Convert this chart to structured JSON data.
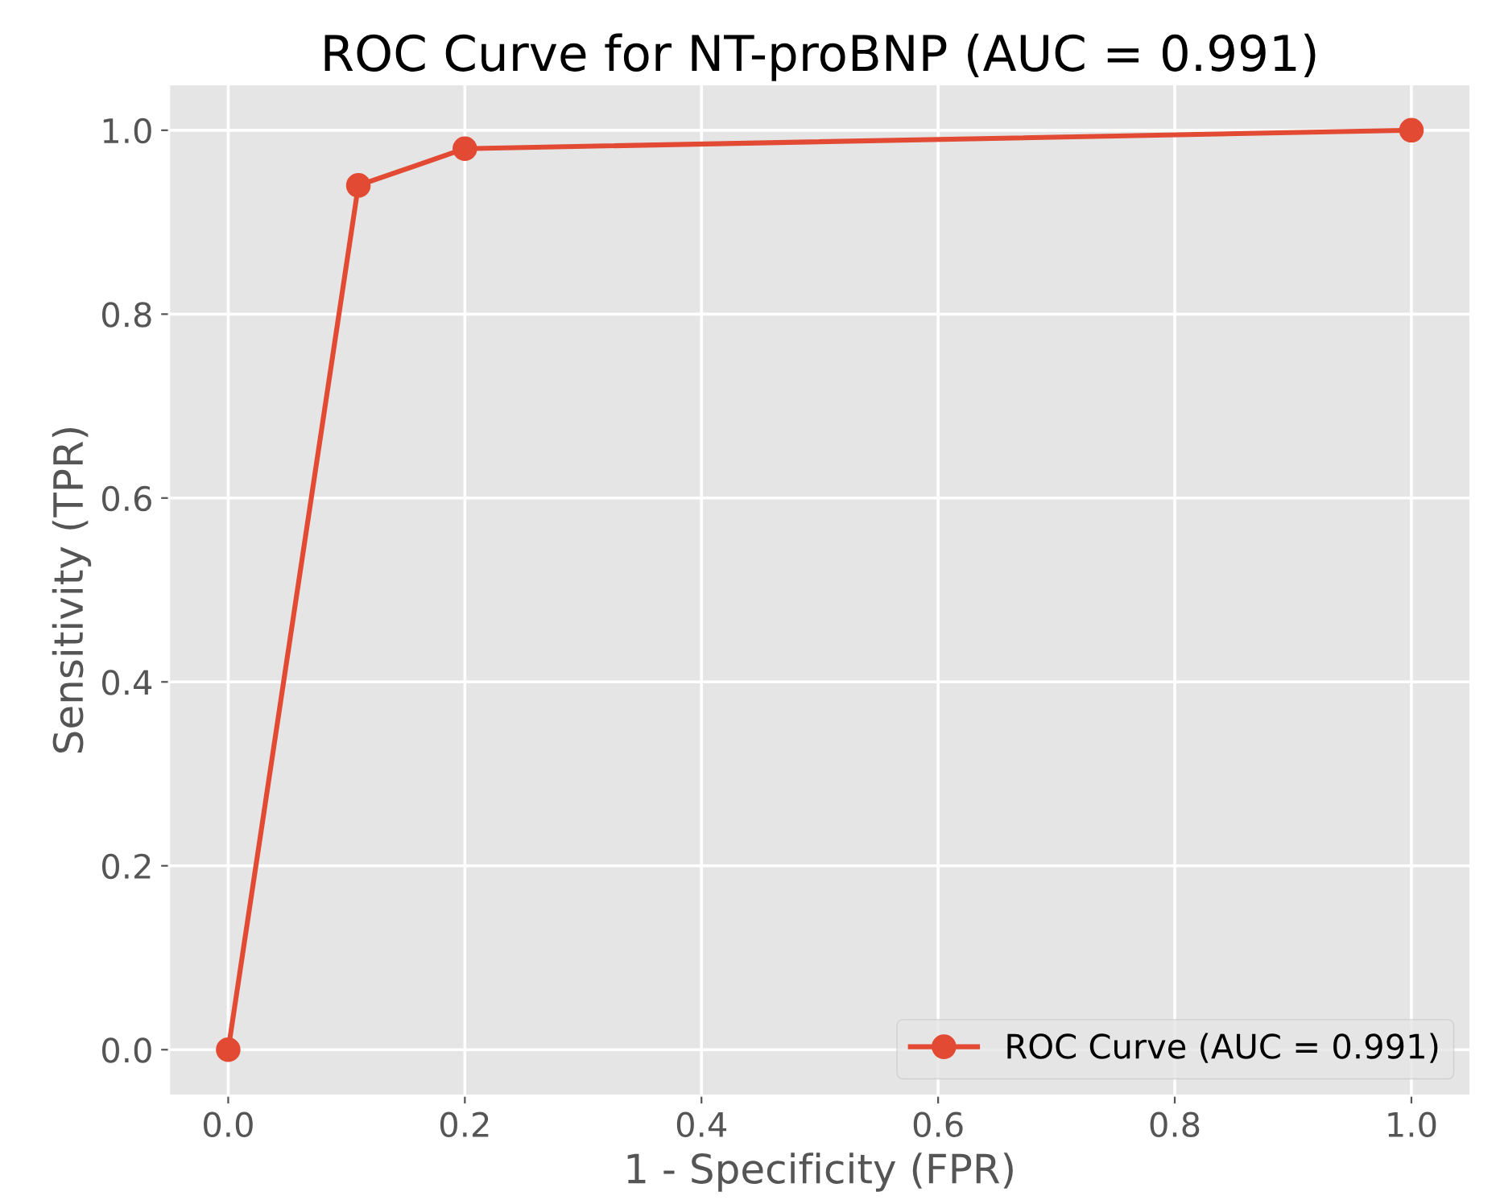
{
  "chart_data": {
    "type": "line",
    "title": "ROC Curve for NT-proBNP (AUC = 0.991)",
    "xlabel": "1 - Specificity (FPR)",
    "ylabel": "Sensitivity (TPR)",
    "series": [
      {
        "name": "ROC Curve (AUC = 0.991)",
        "color": "#e24a33",
        "x": [
          0,
          0.11,
          0.2,
          1
        ],
        "values": [
          0,
          0.94,
          0.98,
          1
        ]
      }
    ],
    "xlim": [
      -0.05,
      1.05
    ],
    "ylim": [
      -0.05,
      1.05
    ],
    "xticks": [
      {
        "value": 0,
        "label": "0.0"
      },
      0.2,
      0.4,
      0.6,
      0.8,
      {
        "value": 1,
        "label": "1.0"
      }
    ],
    "yticks": [
      {
        "value": 0,
        "label": "0.0"
      },
      0.2,
      0.4,
      0.6,
      0.8,
      {
        "value": 1,
        "label": "1.0"
      }
    ],
    "grid": true,
    "legend": "bottom right",
    "marker": "circle",
    "line_style": "solid"
  }
}
